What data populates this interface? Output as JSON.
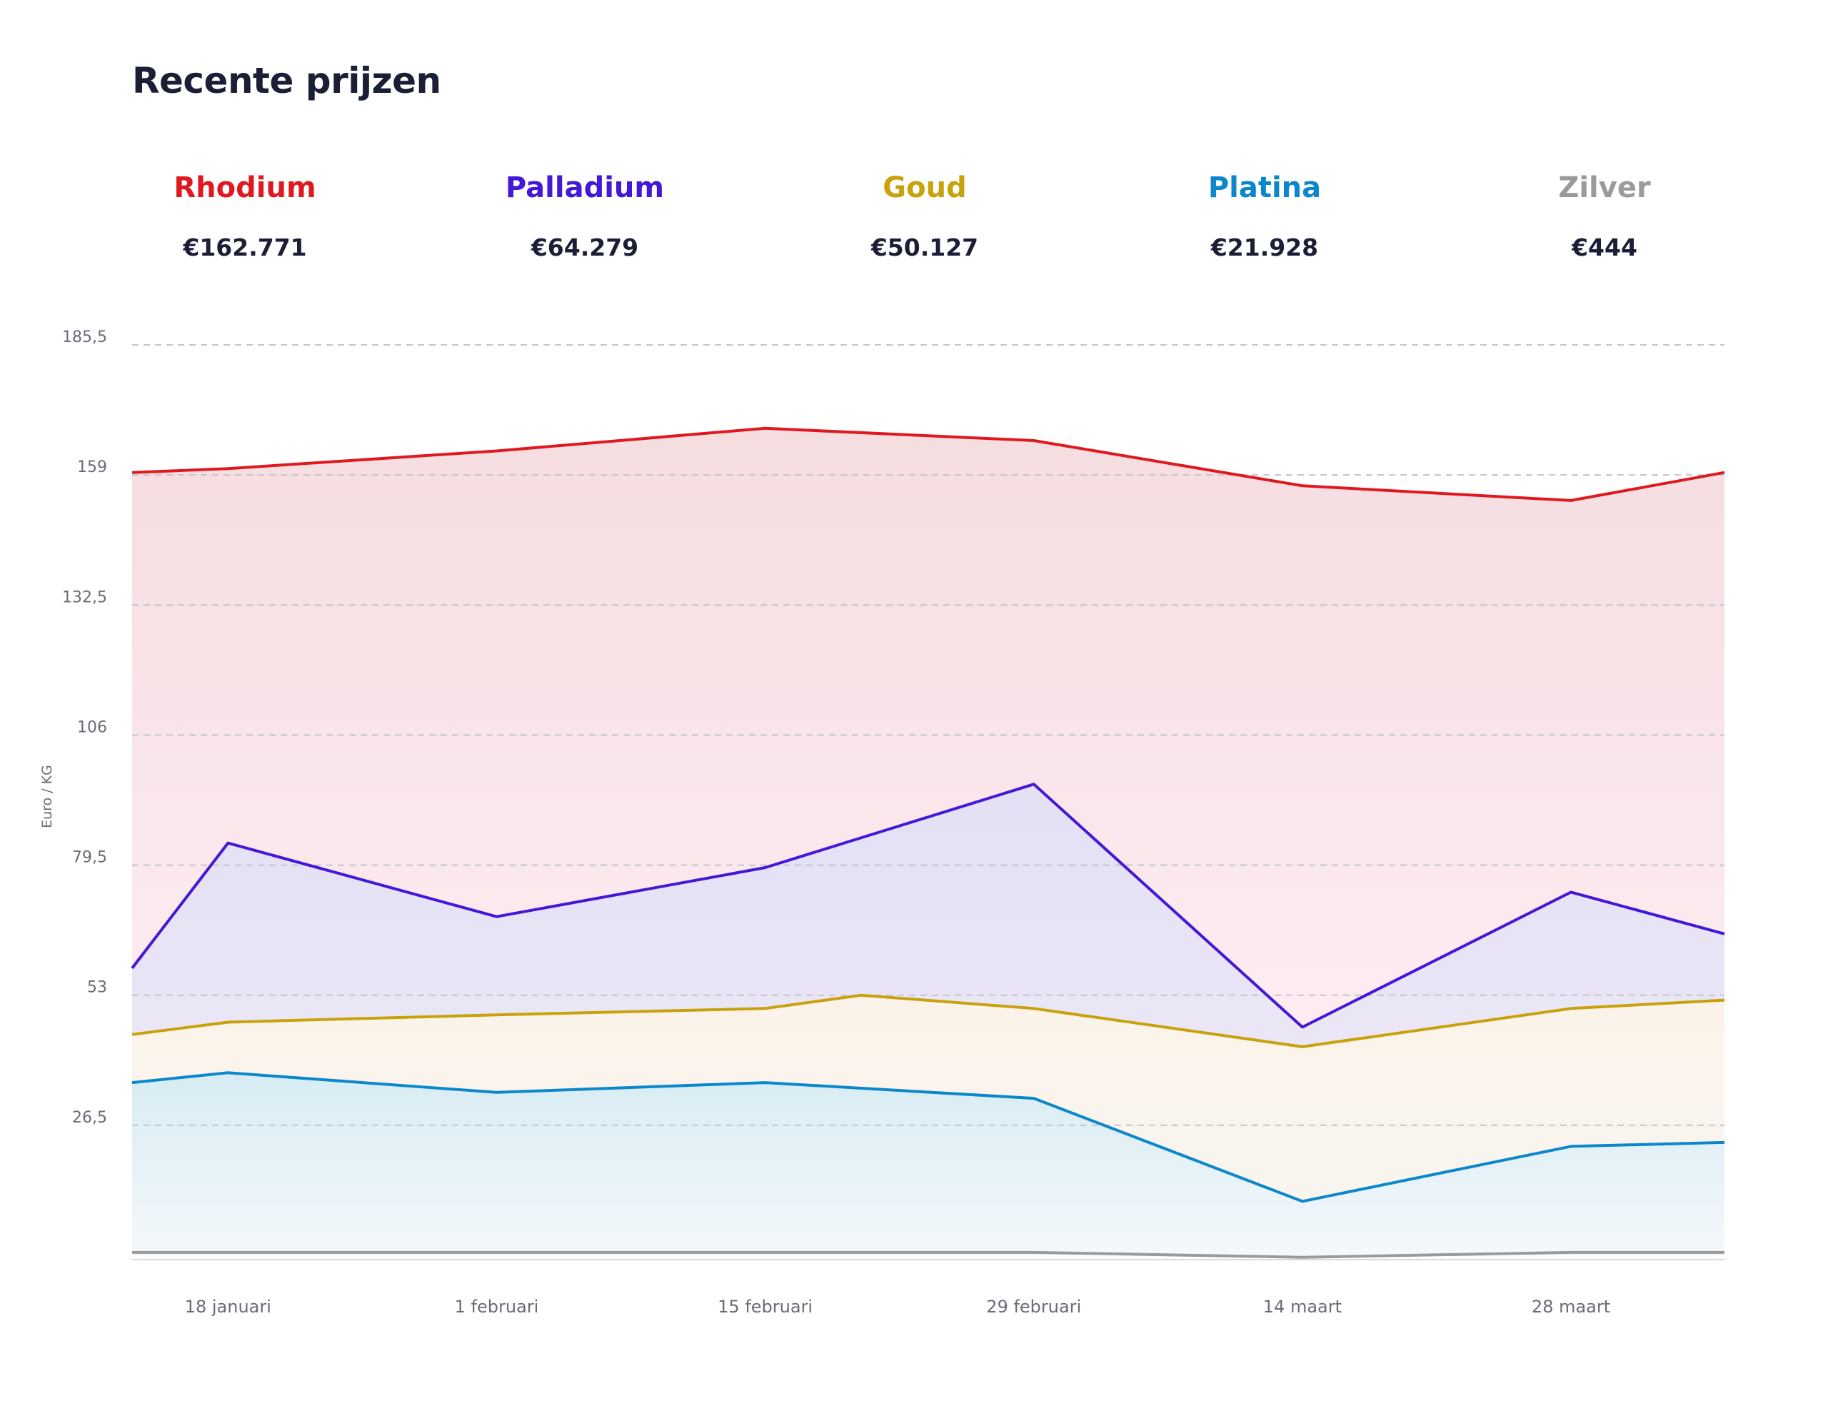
{
  "title": "Recente prijzen",
  "metals": [
    {
      "name": "Rhodium",
      "price": "€162.771",
      "color": "#e0181f"
    },
    {
      "name": "Palladium",
      "price": "€64.279",
      "color": "#4318d6"
    },
    {
      "name": "Goud",
      "price": "€50.127",
      "color": "#c9a20b"
    },
    {
      "name": "Platina",
      "price": "€21.928",
      "color": "#0b87cc"
    },
    {
      "name": "Zilver",
      "price": "€444",
      "color": "#9a9a9a"
    }
  ],
  "chart_data": {
    "type": "area",
    "ylabel": "Euro / KG",
    "xlabel": "",
    "ylim": [
      0,
      185.5
    ],
    "yticks": [
      "185,5",
      "159",
      "132,5",
      "106",
      "79,5",
      "53",
      "26,5"
    ],
    "ytick_values": [
      185.5,
      159,
      132.5,
      106,
      79.5,
      53,
      26.5
    ],
    "xlim": [
      "2024-01-13",
      "2024-04-05"
    ],
    "xticks": [
      {
        "label": "18 januari",
        "date": "2024-01-18"
      },
      {
        "label": "1 februari",
        "date": "2024-02-01"
      },
      {
        "label": "15 februari",
        "date": "2024-02-15"
      },
      {
        "label": "29 februari",
        "date": "2024-02-29"
      },
      {
        "label": "14 maart",
        "date": "2024-03-14"
      },
      {
        "label": "28 maart",
        "date": "2024-03-28"
      }
    ],
    "grid": true,
    "series": [
      {
        "name": "Rhodium",
        "color": "#e0181f",
        "fill_top": "#f5dde0",
        "fill_bottom": "#fff2f8",
        "points": [
          {
            "x": "2024-01-13",
            "y": 159.5
          },
          {
            "x": "2024-01-18",
            "y": 160.3
          },
          {
            "x": "2024-02-01",
            "y": 163.9
          },
          {
            "x": "2024-02-15",
            "y": 168.5
          },
          {
            "x": "2024-02-29",
            "y": 166.0
          },
          {
            "x": "2024-03-14",
            "y": 156.8
          },
          {
            "x": "2024-03-28",
            "y": 153.8
          },
          {
            "x": "2024-04-05",
            "y": 159.5
          }
        ]
      },
      {
        "name": "Palladium",
        "color": "#4318d6",
        "fill_top": "#e4e0f5",
        "fill_bottom": "#efecf8",
        "points": [
          {
            "x": "2024-01-13",
            "y": 58.5
          },
          {
            "x": "2024-01-18",
            "y": 84.0
          },
          {
            "x": "2024-02-01",
            "y": 69.0
          },
          {
            "x": "2024-02-15",
            "y": 79.0
          },
          {
            "x": "2024-02-29",
            "y": 96.0
          },
          {
            "x": "2024-03-14",
            "y": 46.5
          },
          {
            "x": "2024-03-28",
            "y": 74.0
          },
          {
            "x": "2024-04-05",
            "y": 65.5
          }
        ]
      },
      {
        "name": "Goud",
        "color": "#c9a20b",
        "fill_top": "#fbf3ea",
        "fill_bottom": "#f7f6f0",
        "points": [
          {
            "x": "2024-01-13",
            "y": 45.0
          },
          {
            "x": "2024-01-18",
            "y": 47.5
          },
          {
            "x": "2024-02-01",
            "y": 49.0
          },
          {
            "x": "2024-02-15",
            "y": 50.3
          },
          {
            "x": "2024-02-20",
            "y": 53.0
          },
          {
            "x": "2024-02-29",
            "y": 50.3
          },
          {
            "x": "2024-03-14",
            "y": 42.5
          },
          {
            "x": "2024-03-28",
            "y": 50.3
          },
          {
            "x": "2024-04-05",
            "y": 52.0
          }
        ]
      },
      {
        "name": "Platina",
        "color": "#0b87cc",
        "fill_top": "#d7ecf3",
        "fill_bottom": "#f4f8fc",
        "points": [
          {
            "x": "2024-01-13",
            "y": 35.2
          },
          {
            "x": "2024-01-18",
            "y": 37.2
          },
          {
            "x": "2024-02-01",
            "y": 33.2
          },
          {
            "x": "2024-02-15",
            "y": 35.2
          },
          {
            "x": "2024-02-29",
            "y": 32.0
          },
          {
            "x": "2024-03-14",
            "y": 11.0
          },
          {
            "x": "2024-03-28",
            "y": 22.2
          },
          {
            "x": "2024-04-05",
            "y": 23.0
          }
        ]
      },
      {
        "name": "Zilver",
        "color": "#9a9a9a",
        "fill_top": "#f0f0f0",
        "fill_bottom": "#ffffff",
        "points": [
          {
            "x": "2024-01-13",
            "y": 0.6
          },
          {
            "x": "2024-01-18",
            "y": 0.6
          },
          {
            "x": "2024-02-01",
            "y": 0.6
          },
          {
            "x": "2024-02-15",
            "y": 0.6
          },
          {
            "x": "2024-02-29",
            "y": 0.6
          },
          {
            "x": "2024-03-14",
            "y": -0.4
          },
          {
            "x": "2024-03-28",
            "y": 0.6
          },
          {
            "x": "2024-04-05",
            "y": 0.6
          }
        ]
      }
    ]
  }
}
